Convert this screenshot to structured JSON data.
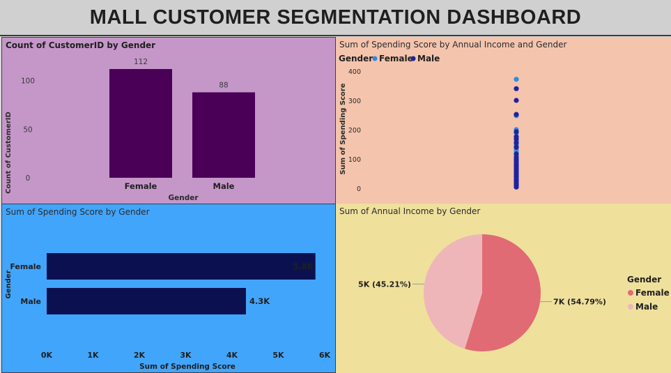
{
  "header": {
    "title": "MALL CUSTOMER SEGMENTATION DASHBOARD"
  },
  "colors": {
    "count_bar": "#4b0057",
    "hbar": "#0b1150",
    "female_dot": "#2f8be0",
    "male_dot": "#1e22a0",
    "pie_female": "#e06b74",
    "pie_male": "#efb6b9"
  },
  "chart_data": [
    {
      "type": "bar",
      "title": "Count of CustomerID by Gender",
      "xlabel": "Gender",
      "ylabel": "Count of CustomerID",
      "categories": [
        "Female",
        "Male"
      ],
      "values": [
        112,
        88
      ],
      "data_labels": [
        "112",
        "88"
      ],
      "yticks": [
        0,
        50,
        100
      ],
      "ylim": [
        0,
        112
      ]
    },
    {
      "type": "scatter",
      "title": "Sum of Spending Score by Annual Income and Gender",
      "legend_title": "Gender",
      "legend_position": "top-left",
      "xlabel": "",
      "ylabel": "Sum of Spending Score",
      "yticks": [
        0,
        100,
        200,
        300,
        400
      ],
      "ylim": [
        0,
        400
      ],
      "series": [
        {
          "name": "Female",
          "y": [
            372,
            248,
            200,
            188,
            160,
            147,
            132,
            124,
            110,
            99,
            92,
            85,
            78,
            71,
            63,
            56,
            49,
            42,
            35,
            28,
            21,
            14
          ]
        },
        {
          "name": "Male",
          "y": [
            340,
            300,
            252,
            193,
            176,
            168,
            155,
            140,
            117,
            105,
            96,
            88,
            80,
            74,
            67,
            60,
            53,
            46,
            39,
            31,
            24,
            17,
            10,
            4
          ]
        }
      ]
    },
    {
      "type": "bar",
      "orientation": "horizontal",
      "title": "Sum of Spending Score by Gender",
      "xlabel": "Sum of Spending Score",
      "ylabel": "Gender",
      "categories": [
        "Female",
        "Male"
      ],
      "values": [
        5800,
        4300
      ],
      "data_labels": [
        "5.8K",
        "4.3K"
      ],
      "xticks": [
        "0K",
        "1K",
        "2K",
        "3K",
        "4K",
        "5K",
        "6K"
      ],
      "xlim": [
        0,
        6000
      ]
    },
    {
      "type": "pie",
      "title": "Sum of Annual Income by Gender",
      "legend_title": "Gender",
      "legend_position": "right",
      "categories": [
        "Female",
        "Male"
      ],
      "values": [
        54.79,
        45.21
      ],
      "data_labels": [
        "7K (54.79%)",
        "5K (45.21%)"
      ]
    }
  ]
}
